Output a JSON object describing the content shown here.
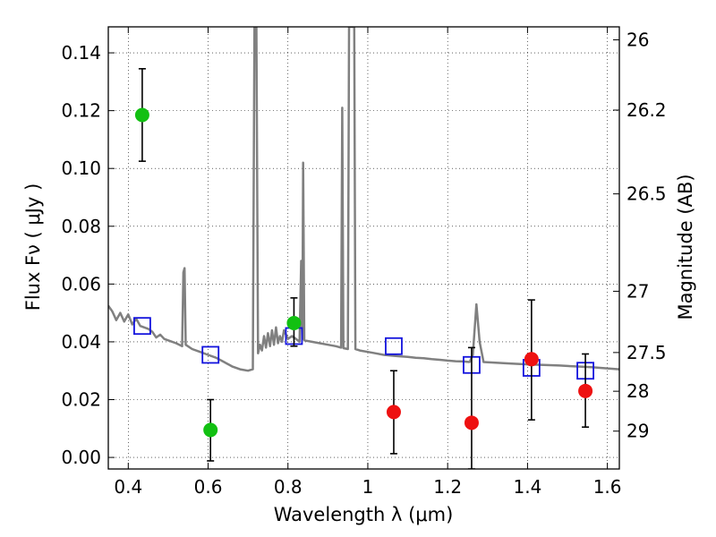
{
  "chart_data": {
    "type": "scatter",
    "xlabel": "Wavelength  λ (μm)",
    "ylabel": "Flux  Fν  ( μJy )",
    "ylabel_right": "Magnitude (AB)",
    "xlim": [
      0.35,
      1.63
    ],
    "ylim": [
      -0.004,
      0.149
    ],
    "grid": true,
    "x_ticks": [
      0.4,
      0.6,
      0.8,
      1.0,
      1.2,
      1.4,
      1.6
    ],
    "x_tick_labels": [
      "0.4",
      "0.6",
      "0.8",
      "1",
      "1.2",
      "1.4",
      "1.6"
    ],
    "y_ticks": [
      0.0,
      0.02,
      0.04,
      0.06,
      0.08,
      0.1,
      0.12,
      0.14
    ],
    "y_tick_labels": [
      "0.00",
      "0.02",
      "0.04",
      "0.06",
      "0.08",
      "0.10",
      "0.12",
      "0.14"
    ],
    "right_ticks": [
      {
        "flux": 0.1445,
        "label": "26"
      },
      {
        "flux": 0.1202,
        "label": "26.2"
      },
      {
        "flux": 0.0912,
        "label": "26.5"
      },
      {
        "flux": 0.0575,
        "label": "27"
      },
      {
        "flux": 0.0363,
        "label": "27.5"
      },
      {
        "flux": 0.0229,
        "label": "28"
      },
      {
        "flux": 0.0091,
        "label": "29"
      }
    ],
    "series": [
      {
        "marker": "circle",
        "color": "#12c012",
        "points": [
          {
            "x": 0.435,
            "y": 0.1185,
            "lo": 0.1025,
            "hi": 0.1345
          },
          {
            "x": 0.606,
            "y": 0.0095,
            "lo": -0.0012,
            "hi": 0.02
          },
          {
            "x": 0.815,
            "y": 0.0465,
            "lo": 0.0385,
            "hi": 0.0552
          }
        ]
      },
      {
        "marker": "circle",
        "color": "#ee1111",
        "points": [
          {
            "x": 1.065,
            "y": 0.0157,
            "lo": 0.0013,
            "hi": 0.03
          },
          {
            "x": 1.26,
            "y": 0.012,
            "lo": -0.004,
            "hi": 0.038
          },
          {
            "x": 1.41,
            "y": 0.034,
            "lo": 0.013,
            "hi": 0.0545
          },
          {
            "x": 1.545,
            "y": 0.023,
            "lo": 0.0105,
            "hi": 0.0358
          }
        ]
      },
      {
        "marker": "open-square",
        "color": "#1212dd",
        "points": [
          {
            "x": 0.435,
            "y": 0.0455
          },
          {
            "x": 0.606,
            "y": 0.0355
          },
          {
            "x": 0.815,
            "y": 0.042
          },
          {
            "x": 1.065,
            "y": 0.0385
          },
          {
            "x": 1.26,
            "y": 0.032
          },
          {
            "x": 1.41,
            "y": 0.031
          },
          {
            "x": 1.545,
            "y": 0.03
          }
        ]
      },
      {
        "line_color": "#808080",
        "points": [
          [
            0.35,
            0.0525
          ],
          [
            0.36,
            0.0505
          ],
          [
            0.37,
            0.0475
          ],
          [
            0.38,
            0.05
          ],
          [
            0.39,
            0.047
          ],
          [
            0.4,
            0.0495
          ],
          [
            0.41,
            0.046
          ],
          [
            0.42,
            0.048
          ],
          [
            0.43,
            0.0455
          ],
          [
            0.44,
            0.045
          ],
          [
            0.45,
            0.0445
          ],
          [
            0.46,
            0.0435
          ],
          [
            0.47,
            0.0415
          ],
          [
            0.48,
            0.0425
          ],
          [
            0.49,
            0.041
          ],
          [
            0.5,
            0.0405
          ],
          [
            0.52,
            0.0395
          ],
          [
            0.535,
            0.0385
          ],
          [
            0.538,
            0.064
          ],
          [
            0.541,
            0.0655
          ],
          [
            0.544,
            0.039
          ],
          [
            0.56,
            0.0375
          ],
          [
            0.58,
            0.0365
          ],
          [
            0.6,
            0.0355
          ],
          [
            0.62,
            0.0345
          ],
          [
            0.64,
            0.033
          ],
          [
            0.66,
            0.0315
          ],
          [
            0.68,
            0.0305
          ],
          [
            0.7,
            0.03
          ],
          [
            0.712,
            0.0305
          ],
          [
            0.716,
            0.149
          ],
          [
            0.721,
            0.149
          ],
          [
            0.725,
            0.036
          ],
          [
            0.73,
            0.039
          ],
          [
            0.735,
            0.037
          ],
          [
            0.74,
            0.042
          ],
          [
            0.745,
            0.038
          ],
          [
            0.75,
            0.043
          ],
          [
            0.755,
            0.0385
          ],
          [
            0.76,
            0.044
          ],
          [
            0.765,
            0.039
          ],
          [
            0.77,
            0.045
          ],
          [
            0.775,
            0.0395
          ],
          [
            0.78,
            0.042
          ],
          [
            0.785,
            0.04
          ],
          [
            0.79,
            0.044
          ],
          [
            0.8,
            0.041
          ],
          [
            0.81,
            0.042
          ],
          [
            0.82,
            0.041
          ],
          [
            0.829,
            0.04
          ],
          [
            0.833,
            0.068
          ],
          [
            0.836,
            0.041
          ],
          [
            0.838,
            0.102
          ],
          [
            0.841,
            0.0405
          ],
          [
            0.86,
            0.04
          ],
          [
            0.88,
            0.0395
          ],
          [
            0.9,
            0.039
          ],
          [
            0.92,
            0.0385
          ],
          [
            0.933,
            0.038
          ],
          [
            0.936,
            0.121
          ],
          [
            0.939,
            0.0378
          ],
          [
            0.95,
            0.0375
          ],
          [
            0.953,
            0.149
          ],
          [
            0.958,
            0.149
          ],
          [
            0.961,
            0.149
          ],
          [
            0.966,
            0.149
          ],
          [
            0.969,
            0.0375
          ],
          [
            0.98,
            0.037
          ],
          [
            1.0,
            0.0365
          ],
          [
            1.02,
            0.036
          ],
          [
            1.04,
            0.0355
          ],
          [
            1.06,
            0.0352
          ],
          [
            1.08,
            0.035
          ],
          [
            1.1,
            0.0348
          ],
          [
            1.12,
            0.0345
          ],
          [
            1.14,
            0.0343
          ],
          [
            1.16,
            0.034
          ],
          [
            1.18,
            0.0338
          ],
          [
            1.2,
            0.0335
          ],
          [
            1.22,
            0.0333
          ],
          [
            1.24,
            0.0332
          ],
          [
            1.255,
            0.033
          ],
          [
            1.263,
            0.0355
          ],
          [
            1.272,
            0.053
          ],
          [
            1.28,
            0.04
          ],
          [
            1.29,
            0.033
          ],
          [
            1.32,
            0.0328
          ],
          [
            1.36,
            0.0325
          ],
          [
            1.4,
            0.0322
          ],
          [
            1.44,
            0.032
          ],
          [
            1.48,
            0.0318
          ],
          [
            1.52,
            0.0315
          ],
          [
            1.56,
            0.0312
          ],
          [
            1.6,
            0.0308
          ],
          [
            1.63,
            0.0305
          ]
        ]
      }
    ]
  }
}
